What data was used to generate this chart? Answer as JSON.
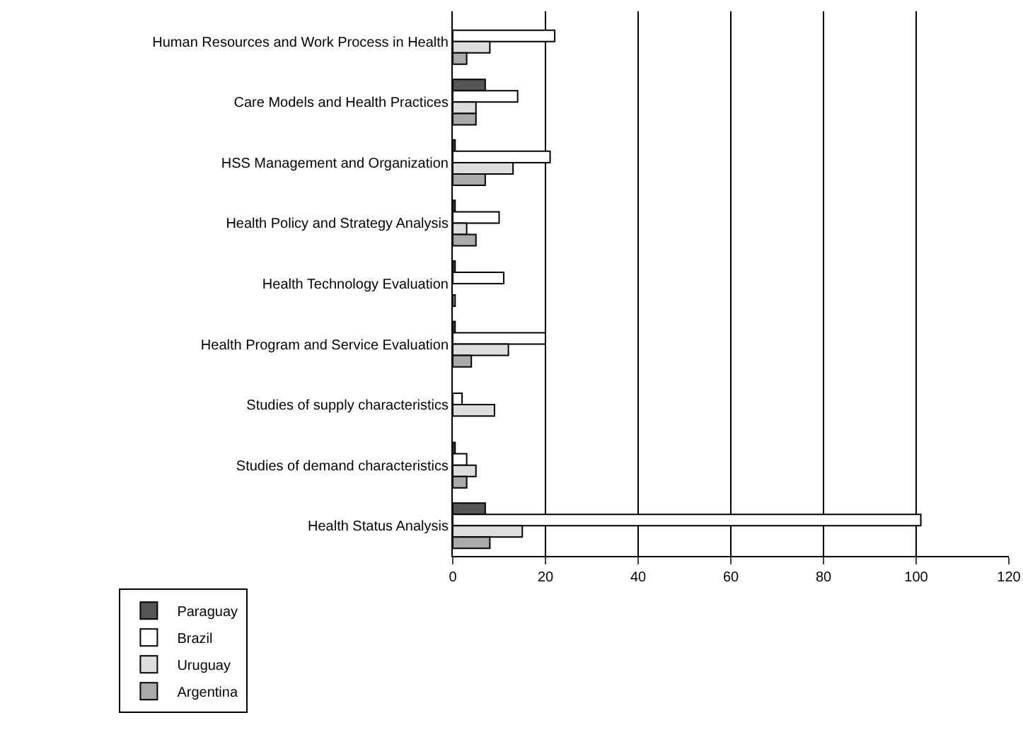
{
  "chart_data": {
    "type": "bar",
    "orientation": "horizontal",
    "categories": [
      "Human Resources and Work Process in Health",
      "Care Models and Health Practices",
      "HSS Management and Organization",
      "Health Policy and Strategy Analysis",
      "Health Technology Evaluation",
      "Health Program and Service Evaluation",
      "Studies of supply characteristics",
      "Studies of demand characteristics",
      "Health Status Analysis"
    ],
    "series": [
      {
        "name": "Paraguay",
        "color": "#555555",
        "values": [
          null,
          7,
          0.5,
          0.5,
          0.5,
          0.5,
          null,
          0.5,
          7
        ]
      },
      {
        "name": "Brazil",
        "color": "#ffffff",
        "values": [
          22,
          14,
          21,
          10,
          11,
          20,
          2,
          3,
          101
        ]
      },
      {
        "name": "Uruguay",
        "color": "#dddddd",
        "values": [
          8,
          5,
          13,
          3,
          null,
          12,
          9,
          5,
          15
        ]
      },
      {
        "name": "Argentina",
        "color": "#aaaaaa",
        "values": [
          3,
          5,
          7,
          5,
          0.5,
          4,
          null,
          3,
          8
        ]
      }
    ],
    "xlim": [
      0,
      120
    ],
    "xticks": [
      0,
      20,
      40,
      60,
      80,
      100,
      120
    ],
    "grid": "x",
    "legend": "bottom left"
  }
}
